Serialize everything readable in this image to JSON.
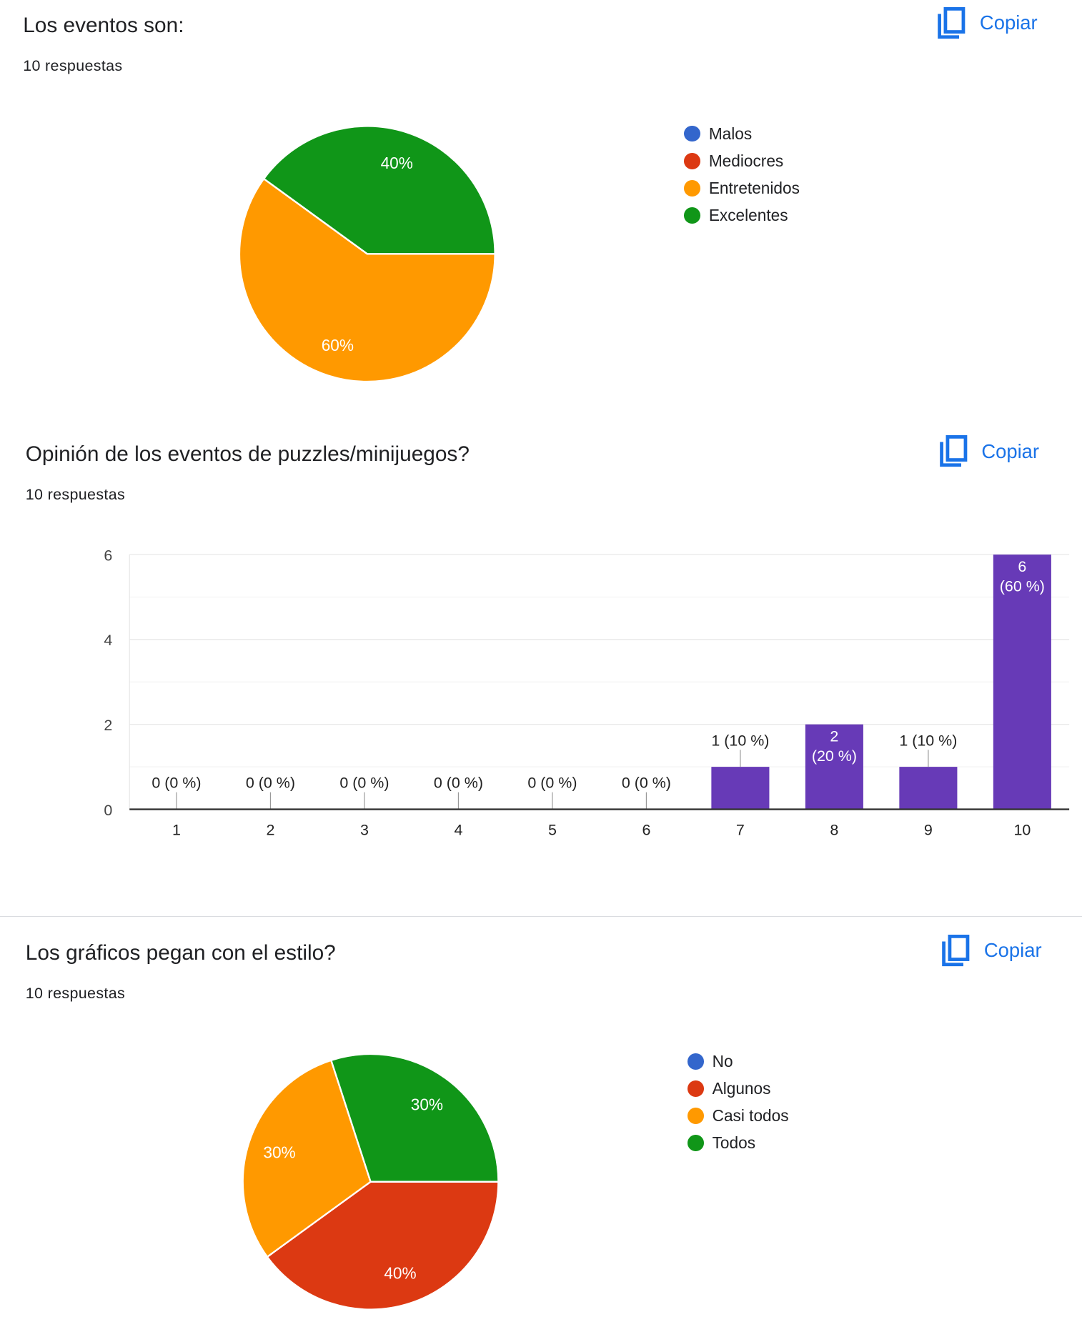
{
  "copy_label": "Copiar",
  "chart_data": [
    {
      "type": "pie",
      "title": "Los eventos son:",
      "responses": "10 respuestas",
      "slices": [
        {
          "label": "Malos",
          "value": 0,
          "color": "#3366cc"
        },
        {
          "label": "Mediocres",
          "value": 0,
          "color": "#dc3912"
        },
        {
          "label": "Entretenidos",
          "value": 60,
          "color": "#ff9900",
          "data_label": "60%"
        },
        {
          "label": "Excelentes",
          "value": 40,
          "color": "#109618",
          "data_label": "40%"
        }
      ],
      "legend_position": "right"
    },
    {
      "type": "bar",
      "title": "Opinión de los eventos de puzzles/minijuegos?",
      "responses": "10 respuestas",
      "categories": [
        "1",
        "2",
        "3",
        "4",
        "5",
        "6",
        "7",
        "8",
        "9",
        "10"
      ],
      "values": [
        0,
        0,
        0,
        0,
        0,
        0,
        1,
        2,
        1,
        6
      ],
      "data_labels": [
        "0 (0 %)",
        "0 (0 %)",
        "0 (0 %)",
        "0 (0 %)",
        "0 (0 %)",
        "0 (0 %)",
        "1 (10 %)",
        "2 (20 %)",
        "1 (10 %)",
        "6 (60 %)"
      ],
      "yticks": [
        "0",
        "2",
        "4",
        "6"
      ],
      "ylim": [
        0,
        6
      ],
      "grid": true,
      "color": "#673ab7"
    },
    {
      "type": "pie",
      "title": "Los gráficos pegan con el estilo?",
      "responses": "10 respuestas",
      "slices": [
        {
          "label": "No",
          "value": 0,
          "color": "#3366cc"
        },
        {
          "label": "Algunos",
          "value": 40,
          "color": "#dc3912",
          "data_label": "40%"
        },
        {
          "label": "Casi todos",
          "value": 30,
          "color": "#ff9900",
          "data_label": "30%"
        },
        {
          "label": "Todos",
          "value": 30,
          "color": "#109618",
          "data_label": "30%"
        }
      ],
      "legend_position": "right"
    }
  ]
}
